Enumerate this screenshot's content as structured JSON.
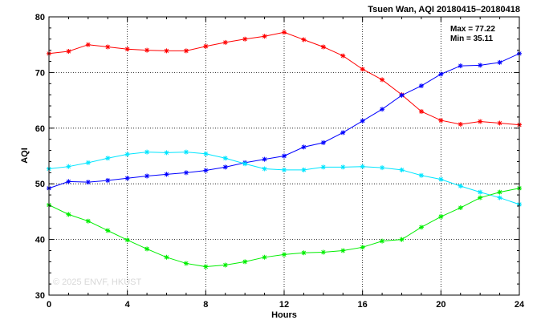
{
  "chart_data": {
    "type": "line",
    "title": "Tsuen Wan, AQI 20180415–20180418",
    "xlabel": "Hours",
    "ylabel": "AQI",
    "xlim": [
      0,
      24
    ],
    "ylim": [
      30,
      80
    ],
    "xticks": [
      0,
      4,
      8,
      12,
      16,
      20,
      24
    ],
    "yticks": [
      30,
      40,
      50,
      60,
      70,
      80
    ],
    "grid": true,
    "annotations": {
      "max": "Max = 77.22",
      "min": "Min = 35.11"
    },
    "watermark": "© 2025  ENVF, HKUST",
    "x": [
      0,
      1,
      2,
      3,
      4,
      5,
      6,
      7,
      8,
      9,
      10,
      11,
      12,
      13,
      14,
      15,
      16,
      17,
      18,
      19,
      20,
      21,
      22,
      23,
      24
    ],
    "series": [
      {
        "color": "#ff0000",
        "values": [
          73.4,
          73.8,
          75.0,
          74.6,
          74.2,
          74.0,
          73.9,
          73.9,
          74.7,
          75.4,
          76.0,
          76.5,
          77.22,
          75.9,
          74.6,
          73.0,
          70.6,
          68.7,
          66.0,
          63.0,
          61.4,
          60.7,
          61.2,
          60.9,
          60.6
        ]
      },
      {
        "color": "#0000ff",
        "values": [
          49.2,
          50.4,
          50.3,
          50.6,
          51.0,
          51.4,
          51.7,
          52.0,
          52.4,
          53.0,
          53.8,
          54.4,
          55.0,
          56.6,
          57.4,
          59.2,
          61.3,
          63.4,
          65.9,
          67.6,
          69.7,
          71.2,
          71.3,
          71.8,
          73.4
        ]
      },
      {
        "color": "#00e5ff",
        "values": [
          52.7,
          53.1,
          53.8,
          54.6,
          55.3,
          55.7,
          55.6,
          55.7,
          55.4,
          54.6,
          53.6,
          52.7,
          52.5,
          52.5,
          53.0,
          53.0,
          53.1,
          52.9,
          52.5,
          51.5,
          50.8,
          49.6,
          48.5,
          47.5,
          46.3
        ]
      },
      {
        "color": "#00ee00",
        "values": [
          46.2,
          44.5,
          43.3,
          41.6,
          39.9,
          38.3,
          36.8,
          35.7,
          35.11,
          35.4,
          36.0,
          36.8,
          37.3,
          37.6,
          37.7,
          38.0,
          38.6,
          39.7,
          40.0,
          42.2,
          44.1,
          45.7,
          47.5,
          48.5,
          49.2
        ]
      }
    ]
  }
}
